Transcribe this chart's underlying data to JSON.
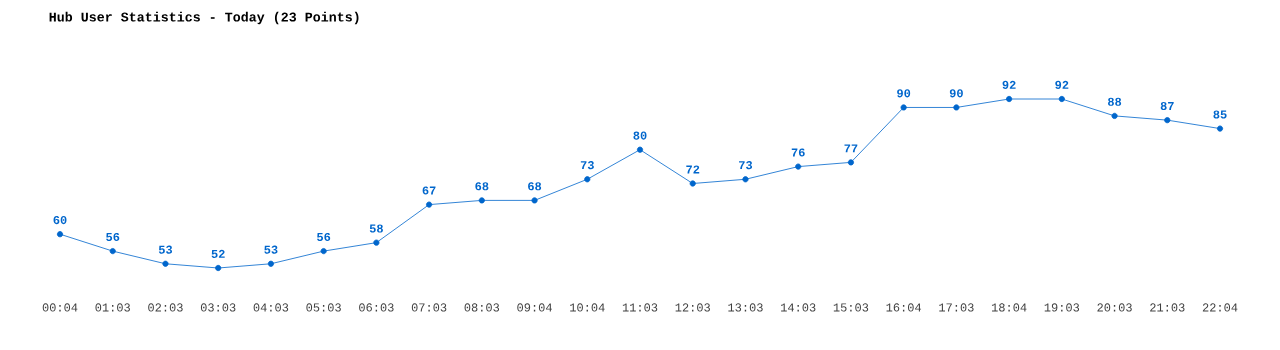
{
  "chart_data": {
    "type": "line",
    "title": "Hub User Statistics - Today (23 Points)",
    "categories": [
      "00:04",
      "01:03",
      "02:03",
      "03:03",
      "04:03",
      "05:03",
      "06:03",
      "07:03",
      "08:03",
      "09:04",
      "10:04",
      "11:03",
      "12:03",
      "13:03",
      "14:03",
      "15:03",
      "16:04",
      "17:03",
      "18:04",
      "19:03",
      "20:03",
      "21:03",
      "22:04"
    ],
    "values": [
      60,
      56,
      53,
      52,
      53,
      56,
      58,
      67,
      68,
      68,
      73,
      80,
      72,
      73,
      76,
      77,
      90,
      90,
      92,
      92,
      88,
      87,
      85
    ],
    "color": "#0066cc",
    "marker": "circle",
    "data_labels": true
  }
}
